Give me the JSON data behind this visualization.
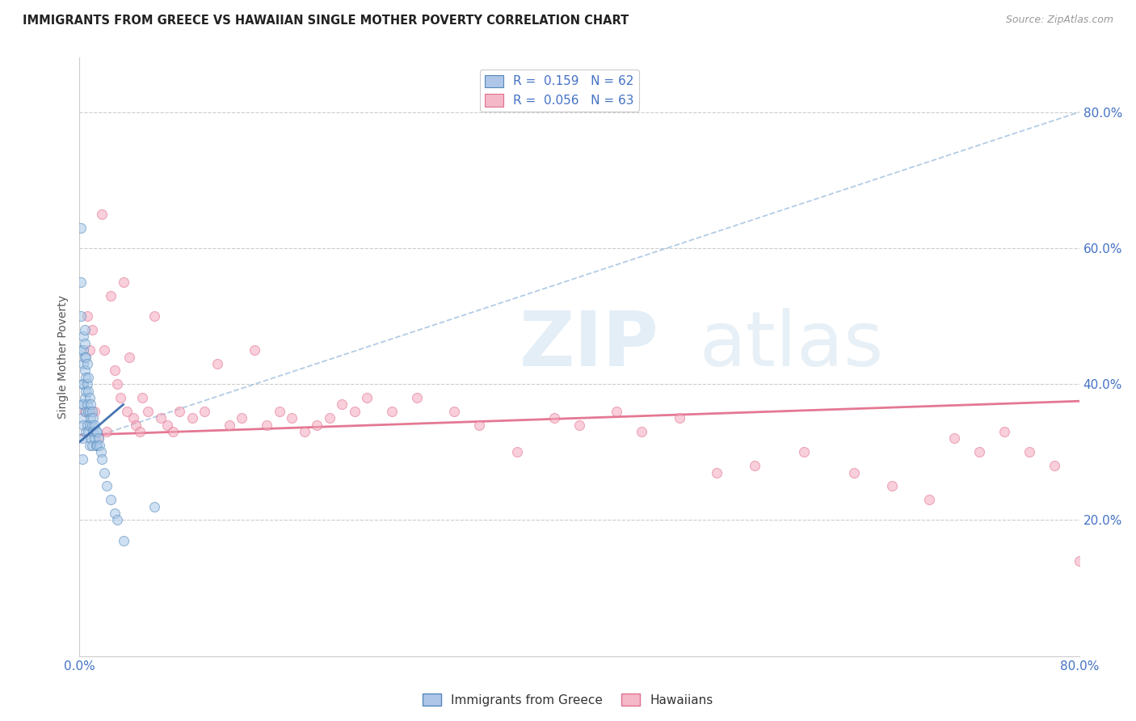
{
  "title": "IMMIGRANTS FROM GREECE VS HAWAIIAN SINGLE MOTHER POVERTY CORRELATION CHART",
  "source": "Source: ZipAtlas.com",
  "ylabel": "Single Mother Poverty",
  "xlim": [
    0,
    0.8
  ],
  "ylim": [
    0,
    0.88
  ],
  "watermark_zip": "ZIP",
  "watermark_atlas": "atlas",
  "blue_scatter_x": [
    0.001,
    0.001,
    0.001,
    0.001,
    0.002,
    0.002,
    0.002,
    0.002,
    0.002,
    0.003,
    0.003,
    0.003,
    0.003,
    0.003,
    0.003,
    0.004,
    0.004,
    0.004,
    0.004,
    0.004,
    0.005,
    0.005,
    0.005,
    0.005,
    0.005,
    0.006,
    0.006,
    0.006,
    0.006,
    0.007,
    0.007,
    0.007,
    0.007,
    0.008,
    0.008,
    0.008,
    0.008,
    0.009,
    0.009,
    0.009,
    0.01,
    0.01,
    0.01,
    0.011,
    0.011,
    0.012,
    0.012,
    0.013,
    0.013,
    0.014,
    0.014,
    0.015,
    0.016,
    0.017,
    0.018,
    0.02,
    0.022,
    0.025,
    0.028,
    0.03,
    0.035,
    0.06
  ],
  "blue_scatter_y": [
    0.63,
    0.55,
    0.5,
    0.45,
    0.4,
    0.37,
    0.35,
    0.32,
    0.29,
    0.47,
    0.45,
    0.43,
    0.4,
    0.37,
    0.34,
    0.48,
    0.46,
    0.44,
    0.42,
    0.38,
    0.44,
    0.41,
    0.39,
    0.36,
    0.33,
    0.43,
    0.4,
    0.37,
    0.34,
    0.41,
    0.39,
    0.36,
    0.33,
    0.38,
    0.36,
    0.34,
    0.31,
    0.37,
    0.35,
    0.32,
    0.36,
    0.34,
    0.31,
    0.35,
    0.33,
    0.34,
    0.32,
    0.33,
    0.31,
    0.33,
    0.31,
    0.32,
    0.31,
    0.3,
    0.29,
    0.27,
    0.25,
    0.23,
    0.21,
    0.2,
    0.17,
    0.22
  ],
  "pink_scatter_x": [
    0.004,
    0.006,
    0.008,
    0.01,
    0.012,
    0.015,
    0.018,
    0.02,
    0.022,
    0.025,
    0.028,
    0.03,
    0.033,
    0.035,
    0.038,
    0.04,
    0.043,
    0.045,
    0.048,
    0.05,
    0.055,
    0.06,
    0.065,
    0.07,
    0.075,
    0.08,
    0.09,
    0.1,
    0.11,
    0.12,
    0.13,
    0.14,
    0.15,
    0.16,
    0.17,
    0.18,
    0.19,
    0.2,
    0.21,
    0.22,
    0.23,
    0.25,
    0.27,
    0.3,
    0.32,
    0.35,
    0.38,
    0.4,
    0.43,
    0.45,
    0.48,
    0.51,
    0.54,
    0.58,
    0.62,
    0.65,
    0.68,
    0.7,
    0.72,
    0.74,
    0.76,
    0.78,
    0.8
  ],
  "pink_scatter_y": [
    0.36,
    0.5,
    0.45,
    0.48,
    0.36,
    0.32,
    0.65,
    0.45,
    0.33,
    0.53,
    0.42,
    0.4,
    0.38,
    0.55,
    0.36,
    0.44,
    0.35,
    0.34,
    0.33,
    0.38,
    0.36,
    0.5,
    0.35,
    0.34,
    0.33,
    0.36,
    0.35,
    0.36,
    0.43,
    0.34,
    0.35,
    0.45,
    0.34,
    0.36,
    0.35,
    0.33,
    0.34,
    0.35,
    0.37,
    0.36,
    0.38,
    0.36,
    0.38,
    0.36,
    0.34,
    0.3,
    0.35,
    0.34,
    0.36,
    0.33,
    0.35,
    0.27,
    0.28,
    0.3,
    0.27,
    0.25,
    0.23,
    0.32,
    0.3,
    0.33,
    0.3,
    0.28,
    0.14
  ],
  "blue_trend_x": [
    0.0,
    0.8
  ],
  "blue_trend_y": [
    0.315,
    0.8
  ],
  "blue_solid_trend_x": [
    0.0,
    0.035
  ],
  "blue_solid_trend_y": [
    0.315,
    0.37
  ],
  "pink_trend_x": [
    0.0,
    0.8
  ],
  "pink_trend_y": [
    0.325,
    0.375
  ],
  "scatter_size": 75,
  "scatter_alpha": 0.55,
  "blue_color": "#a8c8e8",
  "blue_edge_color": "#5588bb",
  "pink_color": "#f4a8bc",
  "pink_edge_color": "#e07090",
  "blue_trend_color": "#8ab0d8",
  "blue_solid_color": "#3366aa",
  "pink_trend_color": "#e06080",
  "grid_color": "#cccccc",
  "background_color": "#ffffff"
}
